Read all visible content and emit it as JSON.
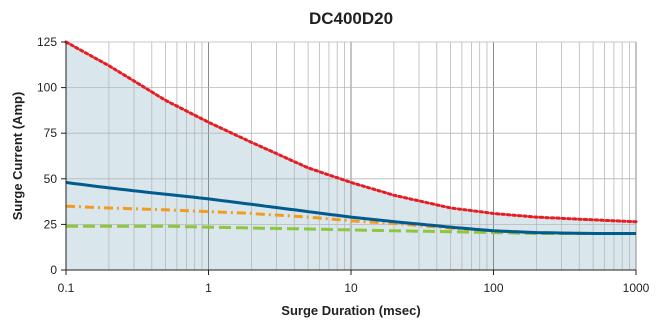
{
  "chart_data": {
    "type": "line",
    "title": "DC400D20",
    "xlabel": "Surge Duration (msec)",
    "ylabel": "Surge Current (Amp)",
    "x_scale": "log",
    "xlim": [
      0.1,
      1000
    ],
    "ylim": [
      0,
      125
    ],
    "x_ticks": [
      0.1,
      1,
      10,
      100,
      1000
    ],
    "x_tick_labels": [
      "0.1",
      "1",
      "10",
      "100",
      "1000"
    ],
    "y_ticks": [
      0,
      25,
      50,
      75,
      100,
      125
    ],
    "y_tick_labels": [
      "0",
      "25",
      "50",
      "75",
      "100",
      "125"
    ],
    "grid": true,
    "area_fill_color": "#d9e6ec",
    "series": [
      {
        "color": "#e31e24",
        "style": "dotted",
        "x": [
          0.1,
          0.2,
          0.5,
          1,
          2,
          5,
          10,
          20,
          50,
          100,
          200,
          500,
          1000
        ],
        "y": [
          125,
          112,
          93,
          81,
          70,
          56,
          48,
          41,
          34,
          31,
          29,
          27.5,
          26.5
        ]
      },
      {
        "color": "#005b8f",
        "style": "solid",
        "x": [
          0.1,
          0.2,
          0.5,
          1,
          2,
          5,
          10,
          20,
          50,
          100,
          200,
          500,
          1000
        ],
        "y": [
          48,
          45,
          41.5,
          39,
          36,
          32,
          29,
          26.5,
          23.5,
          21.5,
          20.5,
          20,
          20
        ]
      },
      {
        "color": "#f29c1f",
        "style": "dashdot",
        "x": [
          0.1,
          0.2,
          0.5,
          1,
          2,
          5,
          10,
          20,
          50,
          100,
          200,
          500,
          1000
        ],
        "y": [
          35,
          34,
          33,
          32,
          31,
          29,
          27,
          25.5,
          23,
          21.5,
          20.5,
          20,
          20
        ]
      },
      {
        "color": "#8dc63f",
        "style": "dashed",
        "x": [
          0.1,
          0.2,
          0.5,
          1,
          2,
          5,
          10,
          20,
          50,
          100,
          200,
          500,
          1000
        ],
        "y": [
          24,
          24,
          24,
          23.5,
          23,
          22.5,
          22,
          21.5,
          21,
          20.5,
          20,
          20,
          20
        ]
      }
    ]
  }
}
